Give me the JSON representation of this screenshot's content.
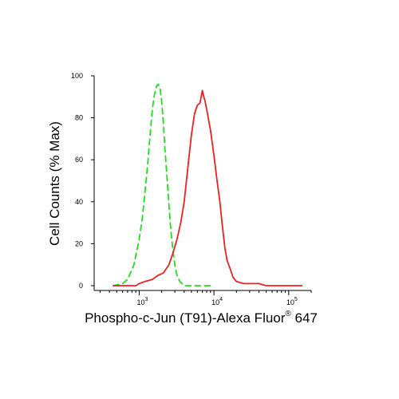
{
  "chart_data": {
    "type": "line",
    "xlabel": "Phospho-c-Jun (T91)-Alexa Fluor",
    "xlabel_superscript": "®",
    "xlabel_suffix": " 647",
    "ylabel": "Cell Counts (% Max)",
    "x_scale": "log",
    "xlim": [
      250,
      200000
    ],
    "ylim": [
      0,
      100
    ],
    "y_ticks": [
      0,
      20,
      40,
      60,
      80,
      100
    ],
    "y_tick_labels": [
      "0",
      "20",
      "40",
      "60",
      "80",
      "100"
    ],
    "x_major_ticks": [
      1000,
      10000,
      100000
    ],
    "x_tick_labels": [
      {
        "base": "10",
        "exp": "3"
      },
      {
        "base": "10",
        "exp": "4"
      },
      {
        "base": "10",
        "exp": "5"
      }
    ],
    "grid": false,
    "legend": "none",
    "series": [
      {
        "color": "#22dd22",
        "style": "dashed",
        "points": [
          [
            450,
            0
          ],
          [
            600,
            1
          ],
          [
            700,
            3
          ],
          [
            850,
            10
          ],
          [
            1000,
            22
          ],
          [
            1100,
            32
          ],
          [
            1200,
            45
          ],
          [
            1300,
            58
          ],
          [
            1400,
            72
          ],
          [
            1500,
            84
          ],
          [
            1600,
            91
          ],
          [
            1700,
            95
          ],
          [
            1800,
            96
          ],
          [
            1900,
            94
          ],
          [
            2000,
            88
          ],
          [
            2100,
            78
          ],
          [
            2200,
            66
          ],
          [
            2400,
            48
          ],
          [
            2600,
            30
          ],
          [
            2800,
            18
          ],
          [
            3000,
            10
          ],
          [
            3200,
            5
          ],
          [
            3500,
            2
          ],
          [
            4000,
            0
          ],
          [
            5000,
            0
          ],
          [
            7000,
            0
          ],
          [
            10000,
            0
          ]
        ]
      },
      {
        "color": "#ee2020",
        "style": "solid",
        "points": [
          [
            450,
            0
          ],
          [
            700,
            0
          ],
          [
            900,
            0
          ],
          [
            1000,
            1
          ],
          [
            1200,
            2
          ],
          [
            1500,
            3
          ],
          [
            1800,
            5
          ],
          [
            2100,
            6
          ],
          [
            2500,
            10
          ],
          [
            2800,
            15
          ],
          [
            3200,
            22
          ],
          [
            3600,
            30
          ],
          [
            4000,
            40
          ],
          [
            4500,
            57
          ],
          [
            5000,
            72
          ],
          [
            5500,
            82
          ],
          [
            6000,
            86
          ],
          [
            6500,
            87
          ],
          [
            7000,
            93
          ],
          [
            7200,
            91
          ],
          [
            7600,
            88
          ],
          [
            8000,
            84
          ],
          [
            9000,
            74
          ],
          [
            10000,
            62
          ],
          [
            11000,
            50
          ],
          [
            12000,
            40
          ],
          [
            13000,
            28
          ],
          [
            14000,
            18
          ],
          [
            15000,
            12
          ],
          [
            16500,
            8
          ],
          [
            18000,
            4
          ],
          [
            20000,
            2
          ],
          [
            25000,
            1
          ],
          [
            30000,
            1
          ],
          [
            40000,
            1
          ],
          [
            50000,
            0
          ],
          [
            60000,
            0
          ],
          [
            100000,
            0
          ],
          [
            150000,
            0
          ]
        ]
      }
    ]
  }
}
